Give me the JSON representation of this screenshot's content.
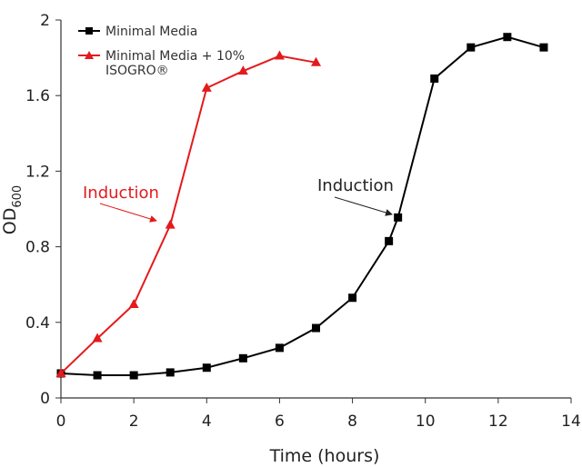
{
  "chart_data": {
    "type": "line",
    "xlabel": "Time (hours)",
    "ylabel": "OD",
    "ylabel_subscript": "600",
    "xlim": [
      0,
      14
    ],
    "ylim": [
      0,
      2
    ],
    "x_ticks": [
      "0",
      "2",
      "4",
      "6",
      "8",
      "10",
      "12",
      "14"
    ],
    "y_ticks": [
      "0",
      "0.4",
      "0.8",
      "1.2",
      "1.6",
      "2"
    ],
    "grid": false,
    "legend_position": "top-left",
    "series": [
      {
        "name": "Minimal Media",
        "color": "#000000",
        "marker": "square",
        "x": [
          0,
          1,
          2,
          3,
          4,
          5,
          6,
          7,
          8,
          9,
          9.25,
          10.25,
          11.25,
          12.25,
          13.25
        ],
        "y": [
          0.13,
          0.12,
          0.12,
          0.135,
          0.16,
          0.21,
          0.265,
          0.37,
          0.53,
          0.83,
          0.955,
          1.69,
          1.855,
          1.91,
          1.855
        ]
      },
      {
        "name": "Minimal Media + 10%",
        "name_line2": "ISOGRO®",
        "color": "#e41a1c",
        "marker": "triangle",
        "x": [
          0,
          1,
          2,
          3,
          4,
          5,
          6,
          7
        ],
        "y": [
          0.13,
          0.315,
          0.495,
          0.915,
          1.64,
          1.73,
          1.81,
          1.775
        ]
      }
    ],
    "annotations": [
      {
        "text": "Induction",
        "color": "#e41a1c",
        "points_to_series": 1,
        "x": 3,
        "y": 0.915
      },
      {
        "text": "Induction",
        "color": "#222222",
        "points_to_series": 0,
        "x": 9.25,
        "y": 0.955
      }
    ]
  }
}
